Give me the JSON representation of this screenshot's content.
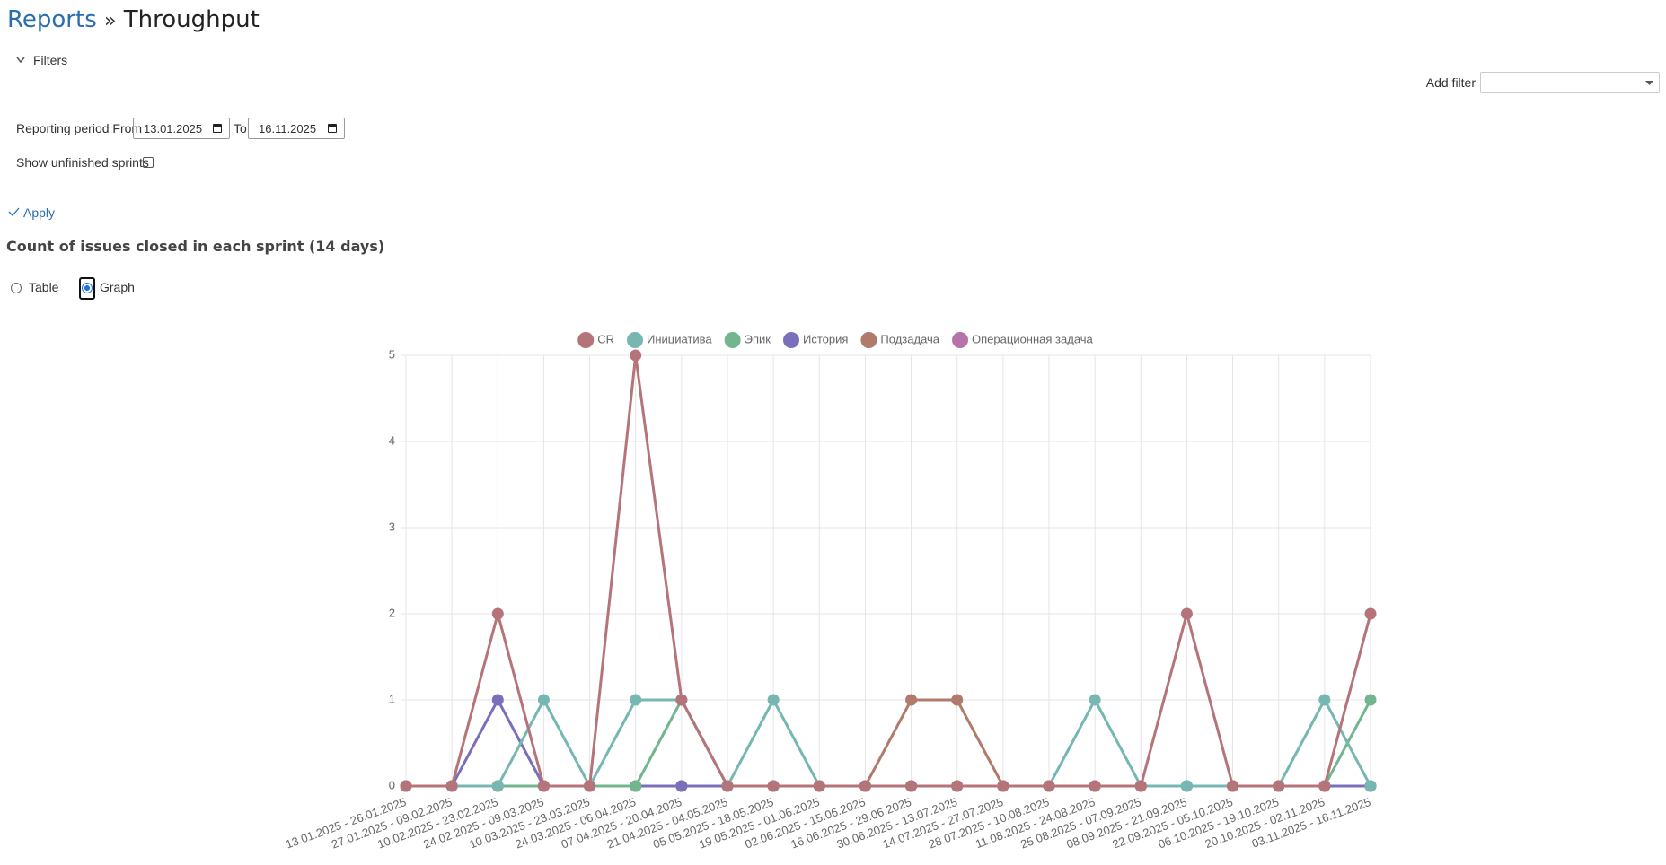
{
  "header": {
    "breadcrumb": "Reports",
    "separator": "»",
    "title": "Throughput"
  },
  "filters": {
    "toggle": "Filters",
    "add_filter": "Add filter",
    "period_label": "Reporting period From",
    "from": "13.01.2025",
    "to_label": "To",
    "to": "16.11.2025",
    "unfinished_label": "Show unfinished sprints",
    "apply": "Apply"
  },
  "report": {
    "heading": "Count of issues closed in each sprint (14 days)",
    "views": [
      "Table",
      "Graph"
    ]
  },
  "chart_data": {
    "type": "line",
    "categories": [
      "13.01.2025 - 26.01.2025",
      "27.01.2025 - 09.02.2025",
      "10.02.2025 - 23.02.2025",
      "24.02.2025 - 09.03.2025",
      "10.03.2025 - 23.03.2025",
      "24.03.2025 - 06.04.2025",
      "07.04.2025 - 20.04.2025",
      "21.04.2025 - 04.05.2025",
      "05.05.2025 - 18.05.2025",
      "19.05.2025 - 01.06.2025",
      "02.06.2025 - 15.06.2025",
      "16.06.2025 - 29.06.2025",
      "30.06.2025 - 13.07.2025",
      "14.07.2025 - 27.07.2025",
      "28.07.2025 - 10.08.2025",
      "11.08.2025 - 24.08.2025",
      "25.08.2025 - 07.09.2025",
      "08.09.2025 - 21.09.2025",
      "22.09.2025 - 05.10.2025",
      "06.10.2025 - 19.10.2025",
      "20.10.2025 - 02.11.2025",
      "03.11.2025 - 16.11.2025"
    ],
    "series": [
      {
        "name": "CR",
        "color": "#b5737a",
        "values": [
          0,
          0,
          2,
          0,
          0,
          5,
          1,
          0,
          0,
          0,
          0,
          0,
          0,
          0,
          0,
          0,
          0,
          2,
          0,
          0,
          0,
          2
        ]
      },
      {
        "name": "Инициатива",
        "color": "#76b7b2",
        "values": [
          0,
          0,
          0,
          1,
          0,
          1,
          1,
          0,
          1,
          0,
          0,
          0,
          0,
          0,
          0,
          1,
          0,
          0,
          0,
          0,
          1,
          0
        ]
      },
      {
        "name": "Эпик",
        "color": "#72b58e",
        "values": [
          0,
          0,
          0,
          0,
          0,
          0,
          1,
          0,
          0,
          0,
          0,
          0,
          0,
          0,
          0,
          0,
          0,
          0,
          0,
          0,
          0,
          1
        ]
      },
      {
        "name": "История",
        "color": "#7a6fba",
        "values": [
          0,
          0,
          1,
          0,
          0,
          0,
          0,
          0,
          0,
          0,
          0,
          0,
          0,
          0,
          0,
          0,
          0,
          0,
          0,
          0,
          0,
          0
        ]
      },
      {
        "name": "Подзадача",
        "color": "#b07b6b",
        "values": [
          0,
          0,
          0,
          0,
          0,
          0,
          0,
          0,
          0,
          0,
          0,
          1,
          1,
          0,
          0,
          0,
          0,
          0,
          0,
          0,
          0,
          0
        ]
      },
      {
        "name": "Операционная задача",
        "color": "#b474a8",
        "values": [
          0,
          0,
          0,
          0,
          0,
          0,
          0,
          0,
          0,
          0,
          0,
          0,
          0,
          0,
          0,
          0,
          0,
          0,
          0,
          0,
          0,
          0
        ]
      }
    ],
    "ylim": [
      0,
      5
    ],
    "yticks": [
      0,
      1,
      2,
      3,
      4,
      5
    ],
    "grid": true
  }
}
